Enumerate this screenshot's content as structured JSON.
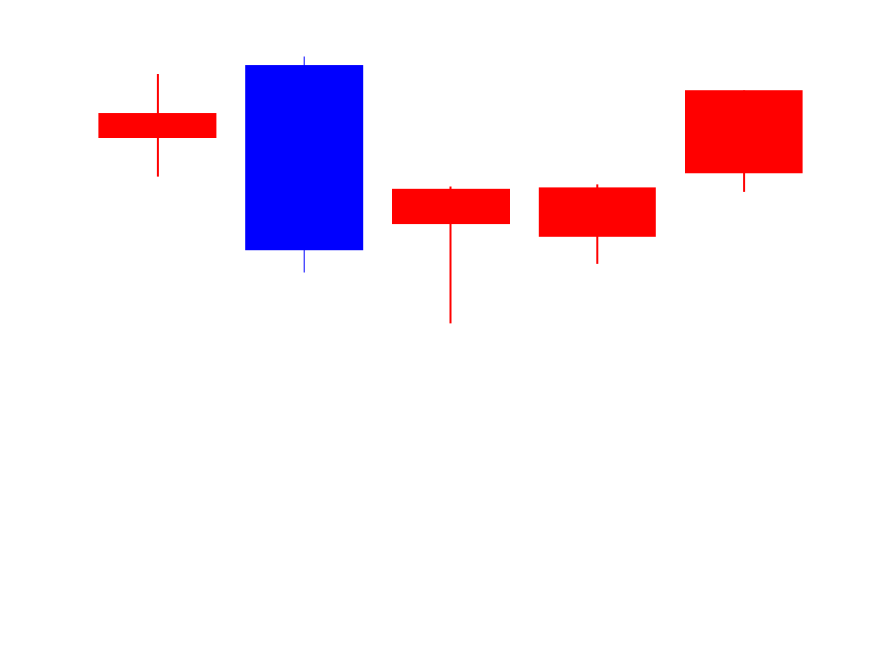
{
  "chart_data": {
    "type": "candlestick",
    "title": "",
    "xlabel": "",
    "ylabel": "",
    "axes_visible": false,
    "grid": false,
    "ylim": [
      0,
      100
    ],
    "colors": {
      "up": "#0000ff",
      "down": "#ff0000"
    },
    "candles": [
      {
        "open": 81.8,
        "close": 70.1,
        "high": 100.0,
        "low": 52.4
      },
      {
        "open": 18.3,
        "close": 104.2,
        "high": 107.8,
        "low": 7.6
      },
      {
        "open": 46.8,
        "close": 30.2,
        "high": 47.8,
        "low": -16.0
      },
      {
        "open": 47.4,
        "close": 24.4,
        "high": 48.7,
        "low": 11.7
      },
      {
        "open": 92.3,
        "close": 53.8,
        "high": 92.3,
        "low": 45.1
      }
    ]
  }
}
